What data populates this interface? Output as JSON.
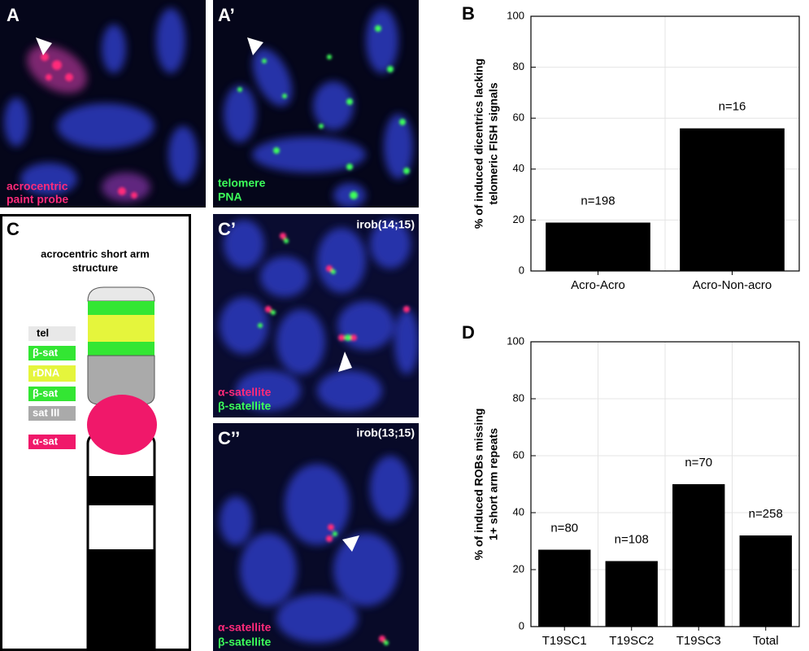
{
  "panel_a": {
    "letter": "A",
    "caption_line1": "acrocentric",
    "caption_line2": "paint probe"
  },
  "panel_a2": {
    "letter": "A’",
    "caption_line1": "telomere",
    "caption_line2": "PNA"
  },
  "panel_c": {
    "letter": "C",
    "title_line1": "acrocentric short arm",
    "title_line2": "structure",
    "legend": [
      "tel",
      "β-sat",
      "rDNA",
      "β-sat",
      "sat III",
      "α-sat"
    ]
  },
  "panel_c2": {
    "letter": "C’",
    "tag": "irob(14;15)",
    "caption_line1": "α-satellite",
    "caption_line2": "β-satellite"
  },
  "panel_c3": {
    "letter": "C’’",
    "tag": "irob(13;15)",
    "caption_line1": "α-satellite",
    "caption_line2": "β-satellite"
  },
  "chart_data": [
    {
      "type": "bar",
      "panel_letter": "B",
      "ylabel": [
        "% of induced dicentrics lacking",
        "telomeric FISH signals"
      ],
      "categories": [
        "Acro-Acro",
        "Acro-Non-acro"
      ],
      "values": [
        19,
        56
      ],
      "annotations": [
        "n=198",
        "n=16"
      ],
      "color": "#000000",
      "ylim": [
        0,
        100
      ],
      "yticks": [
        0,
        20,
        40,
        60,
        80,
        100
      ],
      "grid": true
    },
    {
      "type": "bar",
      "panel_letter": "D",
      "ylabel": [
        "% of induced ROBs missing",
        "1+ short arm repeats"
      ],
      "categories": [
        "T19SC1",
        "T19SC2",
        "T19SC3",
        "Total"
      ],
      "values": [
        27,
        23,
        50,
        32
      ],
      "annotations": [
        "n=80",
        "n=108",
        "n=70",
        "n=258"
      ],
      "color": "#000000",
      "ylim": [
        0,
        100
      ],
      "yticks": [
        0,
        20,
        40,
        60,
        80,
        100
      ],
      "grid": true
    }
  ]
}
